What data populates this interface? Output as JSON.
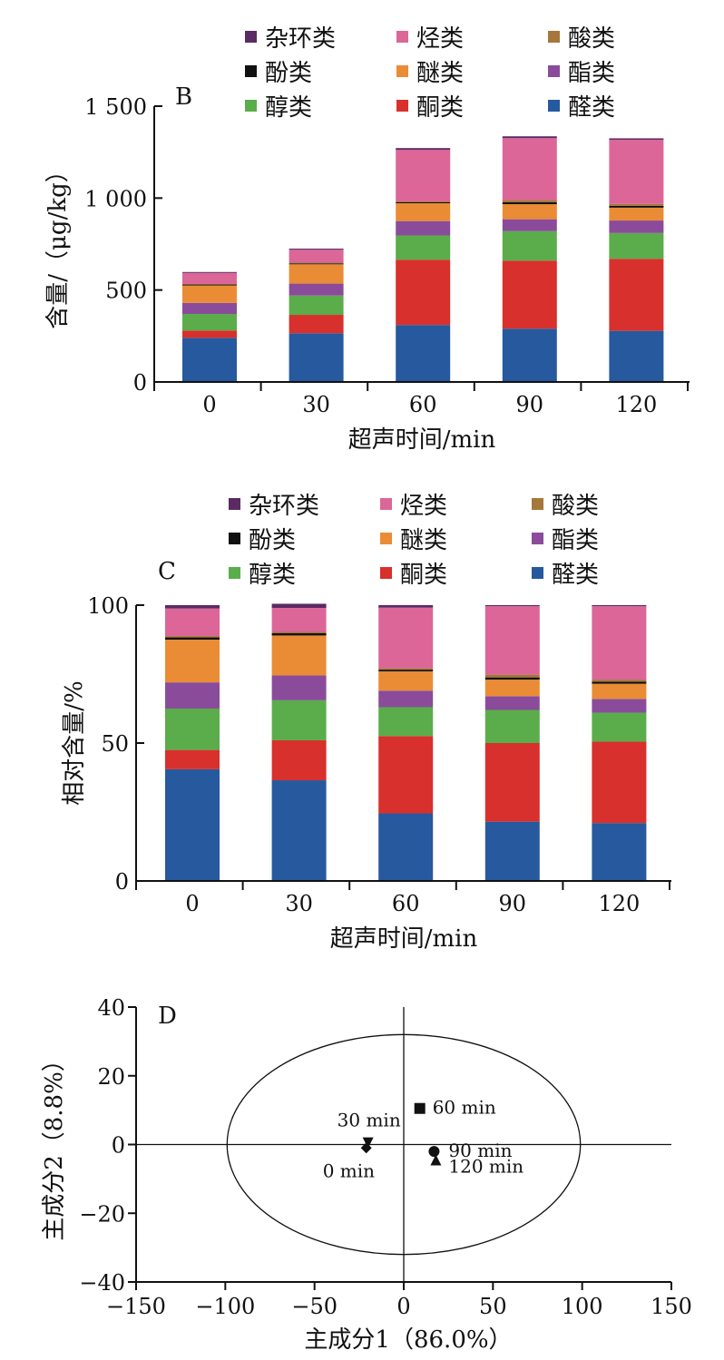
{
  "colors": {
    "杂环类": "#5a2a63",
    "烃类": "#dc6698",
    "酸类": "#a5773b",
    "酚类": "#111111",
    "醚类": "#ea8c35",
    "酯类": "#8a4c9a",
    "醇类": "#5aad4a",
    "酮类": "#d8302c",
    "醛类": "#26599e"
  },
  "chart_data": [
    {
      "id": "B",
      "type": "bar",
      "stacked": true,
      "panel_label": "B",
      "xlabel": "超声时间/min",
      "ylabel": "含量/（μg/kg）",
      "ylim": [
        0,
        1500
      ],
      "yticks": [
        0,
        500,
        1000,
        1500
      ],
      "ytick_labels": [
        "0",
        "500",
        "1 000",
        "1 500"
      ],
      "categories": [
        "0",
        "30",
        "60",
        "90",
        "120"
      ],
      "legend": [
        "杂环类",
        "烃类",
        "酸类",
        "酚类",
        "醚类",
        "酯类",
        "醇类",
        "酮类",
        "醛类"
      ],
      "series": [
        {
          "name": "醛类",
          "values": [
            240,
            265,
            310,
            290,
            278
          ]
        },
        {
          "name": "酮类",
          "values": [
            40,
            100,
            355,
            370,
            392
          ]
        },
        {
          "name": "醇类",
          "values": [
            90,
            105,
            132,
            160,
            140
          ]
        },
        {
          "name": "酯类",
          "values": [
            60,
            65,
            78,
            65,
            68
          ]
        },
        {
          "name": "醚类",
          "values": [
            95,
            105,
            97,
            82,
            70
          ]
        },
        {
          "name": "酚类",
          "values": [
            5,
            5,
            5,
            10,
            10
          ]
        },
        {
          "name": "酸类",
          "values": [
            3,
            4,
            5,
            12,
            10
          ]
        },
        {
          "name": "烃类",
          "values": [
            60,
            70,
            280,
            337,
            349
          ]
        },
        {
          "name": "杂环类",
          "values": [
            5,
            6,
            10,
            10,
            8
          ]
        }
      ]
    },
    {
      "id": "C",
      "type": "bar",
      "stacked": true,
      "panel_label": "C",
      "xlabel": "超声时间/min",
      "ylabel": "相对含量/%",
      "ylim": [
        0,
        100
      ],
      "yticks": [
        0,
        50,
        100
      ],
      "ytick_labels": [
        "0",
        "50",
        "100"
      ],
      "categories": [
        "0",
        "30",
        "60",
        "90",
        "120"
      ],
      "legend": [
        "杂环类",
        "烃类",
        "酸类",
        "酚类",
        "醚类",
        "酯类",
        "醇类",
        "酮类",
        "醛类"
      ],
      "series": [
        {
          "name": "醛类",
          "values": [
            40.5,
            36.5,
            24.5,
            21.5,
            21
          ]
        },
        {
          "name": "酮类",
          "values": [
            7,
            14.5,
            28,
            28.5,
            29.5
          ]
        },
        {
          "name": "醇类",
          "values": [
            15,
            14.5,
            10.5,
            12,
            10.5
          ]
        },
        {
          "name": "酯类",
          "values": [
            9.5,
            9,
            6,
            5,
            5
          ]
        },
        {
          "name": "醚类",
          "values": [
            15.5,
            14.5,
            7,
            6,
            5.5
          ]
        },
        {
          "name": "酚类",
          "values": [
            0.8,
            0.8,
            0.6,
            0.8,
            0.7
          ]
        },
        {
          "name": "酸类",
          "values": [
            0.5,
            0.5,
            0.5,
            1,
            0.8
          ]
        },
        {
          "name": "烃类",
          "values": [
            10,
            8.7,
            22,
            24.8,
            26.6
          ]
        },
        {
          "name": "杂环类",
          "values": [
            1.2,
            1.5,
            0.9,
            0.4,
            0.4
          ]
        }
      ]
    },
    {
      "id": "D",
      "type": "scatter",
      "panel_label": "D",
      "xlabel": "主成分1（86.0%）",
      "ylabel": "主成分2（8.8%）",
      "xlim": [
        -150,
        150
      ],
      "ylim": [
        -40,
        40
      ],
      "xticks": [
        -150,
        -100,
        -50,
        0,
        50,
        100,
        150
      ],
      "xtick_labels": [
        "−150",
        "−100",
        "−50",
        "0",
        "50",
        "100",
        "150"
      ],
      "yticks": [
        -40,
        -20,
        0,
        20,
        40
      ],
      "ytick_labels": [
        "−40",
        "−20",
        "0",
        "20",
        "40"
      ],
      "ellipse": {
        "cx": 0,
        "cy": 0,
        "rx": 99,
        "ry": 32
      },
      "points": [
        {
          "label": "0 min",
          "x": -21,
          "y": -1,
          "marker": "diamond"
        },
        {
          "label": "30 min",
          "x": -20,
          "y": 0.5,
          "marker": "triangle-down"
        },
        {
          "label": "60 min",
          "x": 9,
          "y": 10.5,
          "marker": "square"
        },
        {
          "label": "90 min",
          "x": 17,
          "y": -2,
          "marker": "circle"
        },
        {
          "label": "120 min",
          "x": 18,
          "y": -4.5,
          "marker": "triangle-up"
        }
      ]
    }
  ]
}
